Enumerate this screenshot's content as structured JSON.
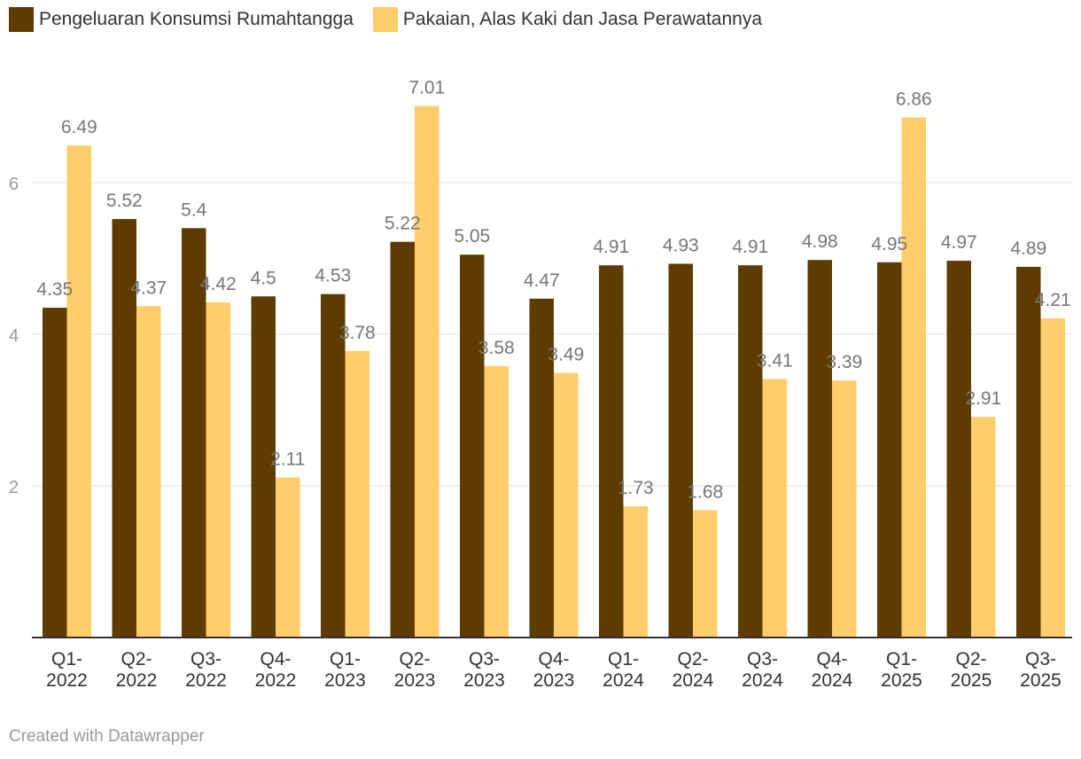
{
  "chart_data": {
    "type": "bar",
    "title": "",
    "xlabel": "",
    "ylabel": "",
    "ylim": [
      0,
      7.3
    ],
    "yticks": [
      2,
      4,
      6
    ],
    "grid": true,
    "legend_position": "top-left",
    "categories": [
      [
        "Q1-",
        "2022"
      ],
      [
        "Q2-",
        "2022"
      ],
      [
        "Q3-",
        "2022"
      ],
      [
        "Q4-",
        "2022"
      ],
      [
        "Q1-",
        "2023"
      ],
      [
        "Q2-",
        "2023"
      ],
      [
        "Q3-",
        "2023"
      ],
      [
        "Q4-",
        "2023"
      ],
      [
        "Q1-",
        "2024"
      ],
      [
        "Q2-",
        "2024"
      ],
      [
        "Q3-",
        "2024"
      ],
      [
        "Q4-",
        "2024"
      ],
      [
        "Q1-",
        "2025"
      ],
      [
        "Q2-",
        "2025"
      ],
      [
        "Q3-",
        "2025"
      ]
    ],
    "series": [
      {
        "name": "Pengeluaran Konsumsi Rumahtangga",
        "color": "#5e3c00",
        "values": [
          4.35,
          5.52,
          5.4,
          4.5,
          4.53,
          5.22,
          5.05,
          4.47,
          4.91,
          4.93,
          4.91,
          4.98,
          4.95,
          4.97,
          4.89
        ],
        "labels": [
          "4.35",
          "5.52",
          "5.4",
          "4.5",
          "4.53",
          "5.22",
          "5.05",
          "4.47",
          "4.91",
          "4.93",
          "4.91",
          "4.98",
          "4.95",
          "4.97",
          "4.89"
        ]
      },
      {
        "name": "Pakaian, Alas Kaki dan Jasa Perawatannya",
        "color": "#ffcd69",
        "values": [
          6.49,
          4.37,
          4.42,
          2.11,
          3.78,
          7.01,
          3.58,
          3.49,
          1.73,
          1.68,
          3.41,
          3.39,
          6.86,
          2.91,
          4.21
        ],
        "labels": [
          "6.49",
          "4.37",
          "4.42",
          "2.11",
          "3.78",
          "7.01",
          "3.58",
          "3.49",
          "1.73",
          "1.68",
          "3.41",
          "3.39",
          "6.86",
          "2.91",
          "4.21"
        ]
      }
    ]
  },
  "credit": "Created with Datawrapper"
}
